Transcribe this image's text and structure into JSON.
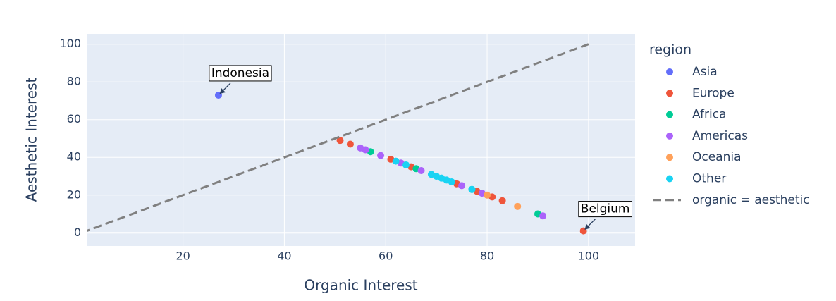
{
  "chart_data": {
    "type": "scatter",
    "x_label": "Organic Interest",
    "y_label": "Aesthetic Interest",
    "legend_title": "region",
    "legend_position": "right",
    "xlim": [
      1,
      109.2
    ],
    "ylim": [
      -7,
      105.5
    ],
    "xticks": [
      20,
      40,
      60,
      80,
      100
    ],
    "yticks": [
      0,
      20,
      40,
      60,
      80,
      100
    ],
    "grid": true,
    "series": [
      {
        "name": "Asia",
        "color": "#636efa",
        "x": [
          27
        ],
        "y": [
          73
        ]
      },
      {
        "name": "Europe",
        "color": "#ef553b",
        "x": [
          51,
          53,
          61,
          65,
          74,
          78,
          81,
          83,
          99
        ],
        "y": [
          49,
          47,
          39,
          35,
          26,
          22,
          19,
          17,
          1
        ]
      },
      {
        "name": "Africa",
        "color": "#00cc96",
        "x": [
          57,
          66,
          77,
          90
        ],
        "y": [
          43,
          34,
          23,
          10
        ]
      },
      {
        "name": "Americas",
        "color": "#ab63fa",
        "x": [
          55,
          56,
          59,
          63,
          67,
          75,
          79,
          91
        ],
        "y": [
          45,
          44,
          41,
          37,
          33,
          25,
          21,
          9
        ]
      },
      {
        "name": "Oceania",
        "color": "#ffa15a",
        "x": [
          80,
          86
        ],
        "y": [
          20,
          14
        ]
      },
      {
        "name": "Other",
        "color": "#19d3f3",
        "x": [
          62,
          64,
          69,
          70,
          71,
          72,
          73,
          77
        ],
        "y": [
          38,
          36,
          31,
          30,
          29,
          28,
          27,
          23
        ]
      },
      {
        "name": "organic = aesthetic",
        "color": "#808080",
        "line": "dash",
        "x": [
          0,
          100
        ],
        "y": [
          0,
          100
        ]
      }
    ],
    "annotations": [
      {
        "text": "Indonesia",
        "x": 27,
        "y": 73
      },
      {
        "text": "Belgium",
        "x": 99,
        "y": 1
      }
    ]
  }
}
